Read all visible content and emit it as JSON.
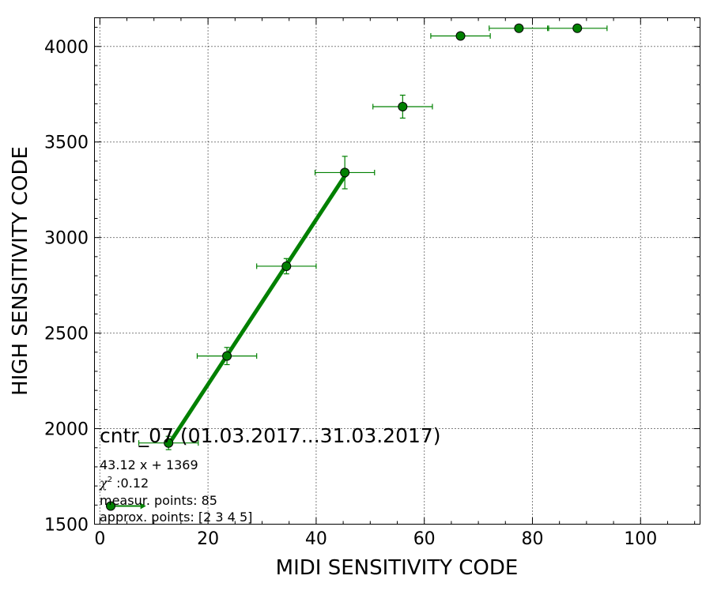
{
  "chart_data": {
    "type": "scatter",
    "title": "cntr_07 (01.03.2017...31.03.2017)",
    "xlabel": "MIDI SENSITIVITY CODE",
    "ylabel": "HIGH SENSITIVITY CODE",
    "xlim": [
      -1,
      111
    ],
    "ylim": [
      1500,
      4150
    ],
    "xticks": [
      0,
      20,
      40,
      60,
      80,
      100
    ],
    "yticks": [
      1500,
      2000,
      2500,
      3000,
      3500,
      4000
    ],
    "grid": true,
    "colors": {
      "series": "#008000",
      "marker_edge": "#000000"
    },
    "series": [
      {
        "points": [
          {
            "x": 2,
            "y": 1595,
            "xerr": [
              0,
              5.5
            ],
            "yerr": 0,
            "marker": "arrow"
          },
          {
            "x": 12.7,
            "y": 1925,
            "xerr": 5.5,
            "yerr": 35
          },
          {
            "x": 23.5,
            "y": 2380,
            "xerr": 5.5,
            "yerr": 45
          },
          {
            "x": 34.5,
            "y": 2850,
            "xerr": 5.5,
            "yerr": 40
          },
          {
            "x": 45.3,
            "y": 3340,
            "xerr": 5.5,
            "yerr": 85
          },
          {
            "x": 56,
            "y": 3685,
            "xerr": 5.5,
            "yerr": 60
          },
          {
            "x": 66.7,
            "y": 4055,
            "xerr": 5.5,
            "yerr": 0
          },
          {
            "x": 77.5,
            "y": 4095,
            "xerr": 5.5,
            "yerr": 0
          },
          {
            "x": 88.3,
            "y": 4095,
            "xerr": 5.5,
            "yerr": 0
          }
        ]
      }
    ],
    "fit_line": {
      "slope": 43.12,
      "intercept": 1369,
      "x_range": [
        12.7,
        45.3
      ]
    },
    "annotations": {
      "equation": "43.12 x + 1369",
      "chi2_symbol": "χ",
      "chi2_sup": "2",
      "chi2": " :0.12",
      "measur_points": "measur. points: 85",
      "approx_points": "approx. points: [2 3 4 5]"
    }
  }
}
